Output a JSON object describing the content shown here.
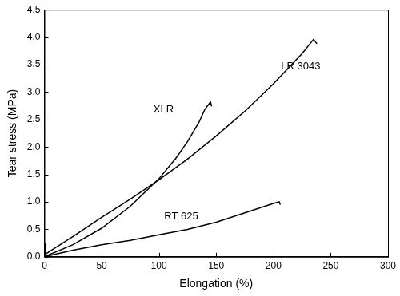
{
  "chart_data": {
    "type": "line",
    "x_label": "Elongation (%)",
    "y_label": "Tear stress (MPa)",
    "xlim": [
      0,
      300
    ],
    "ylim": [
      0,
      4.5
    ],
    "xticks": [
      0,
      50,
      100,
      150,
      200,
      250,
      300
    ],
    "yticks": [
      {
        "value": 0,
        "label": "0.0"
      },
      {
        "value": 0.5,
        "label": "0.5"
      },
      {
        "value": 1,
        "label": "1.0"
      },
      {
        "value": 1.5,
        "label": "1.5"
      },
      {
        "value": 2,
        "label": "2.0"
      },
      {
        "value": 2.5,
        "label": "2.5"
      },
      {
        "value": 3,
        "label": "3.0"
      },
      {
        "value": 3.5,
        "label": "3.5"
      },
      {
        "value": 4,
        "label": "4.0"
      },
      {
        "value": 4.5,
        "label": "4.5"
      }
    ],
    "grid": false,
    "series": [
      {
        "name": "XLR",
        "color": "#000000",
        "x": [
          0,
          25,
          50,
          75,
          100,
          115,
          125,
          135,
          140,
          145,
          146
        ],
        "values": [
          0,
          0.22,
          0.52,
          0.92,
          1.42,
          1.8,
          2.1,
          2.45,
          2.68,
          2.82,
          2.74
        ]
      },
      {
        "name": "LR 3043",
        "color": "#000000",
        "x": [
          0,
          0.5,
          1,
          25,
          50,
          75,
          100,
          125,
          150,
          175,
          200,
          225,
          235,
          238
        ],
        "values": [
          0,
          0.25,
          0.05,
          0.37,
          0.72,
          1.05,
          1.4,
          1.78,
          2.2,
          2.65,
          3.15,
          3.7,
          3.96,
          3.88
        ]
      },
      {
        "name": "RT 625",
        "color": "#000000",
        "x": [
          0,
          25,
          50,
          75,
          100,
          125,
          150,
          175,
          200,
          205,
          206
        ],
        "values": [
          0,
          0.12,
          0.22,
          0.3,
          0.4,
          0.5,
          0.63,
          0.8,
          0.97,
          1.0,
          0.95
        ]
      }
    ]
  }
}
